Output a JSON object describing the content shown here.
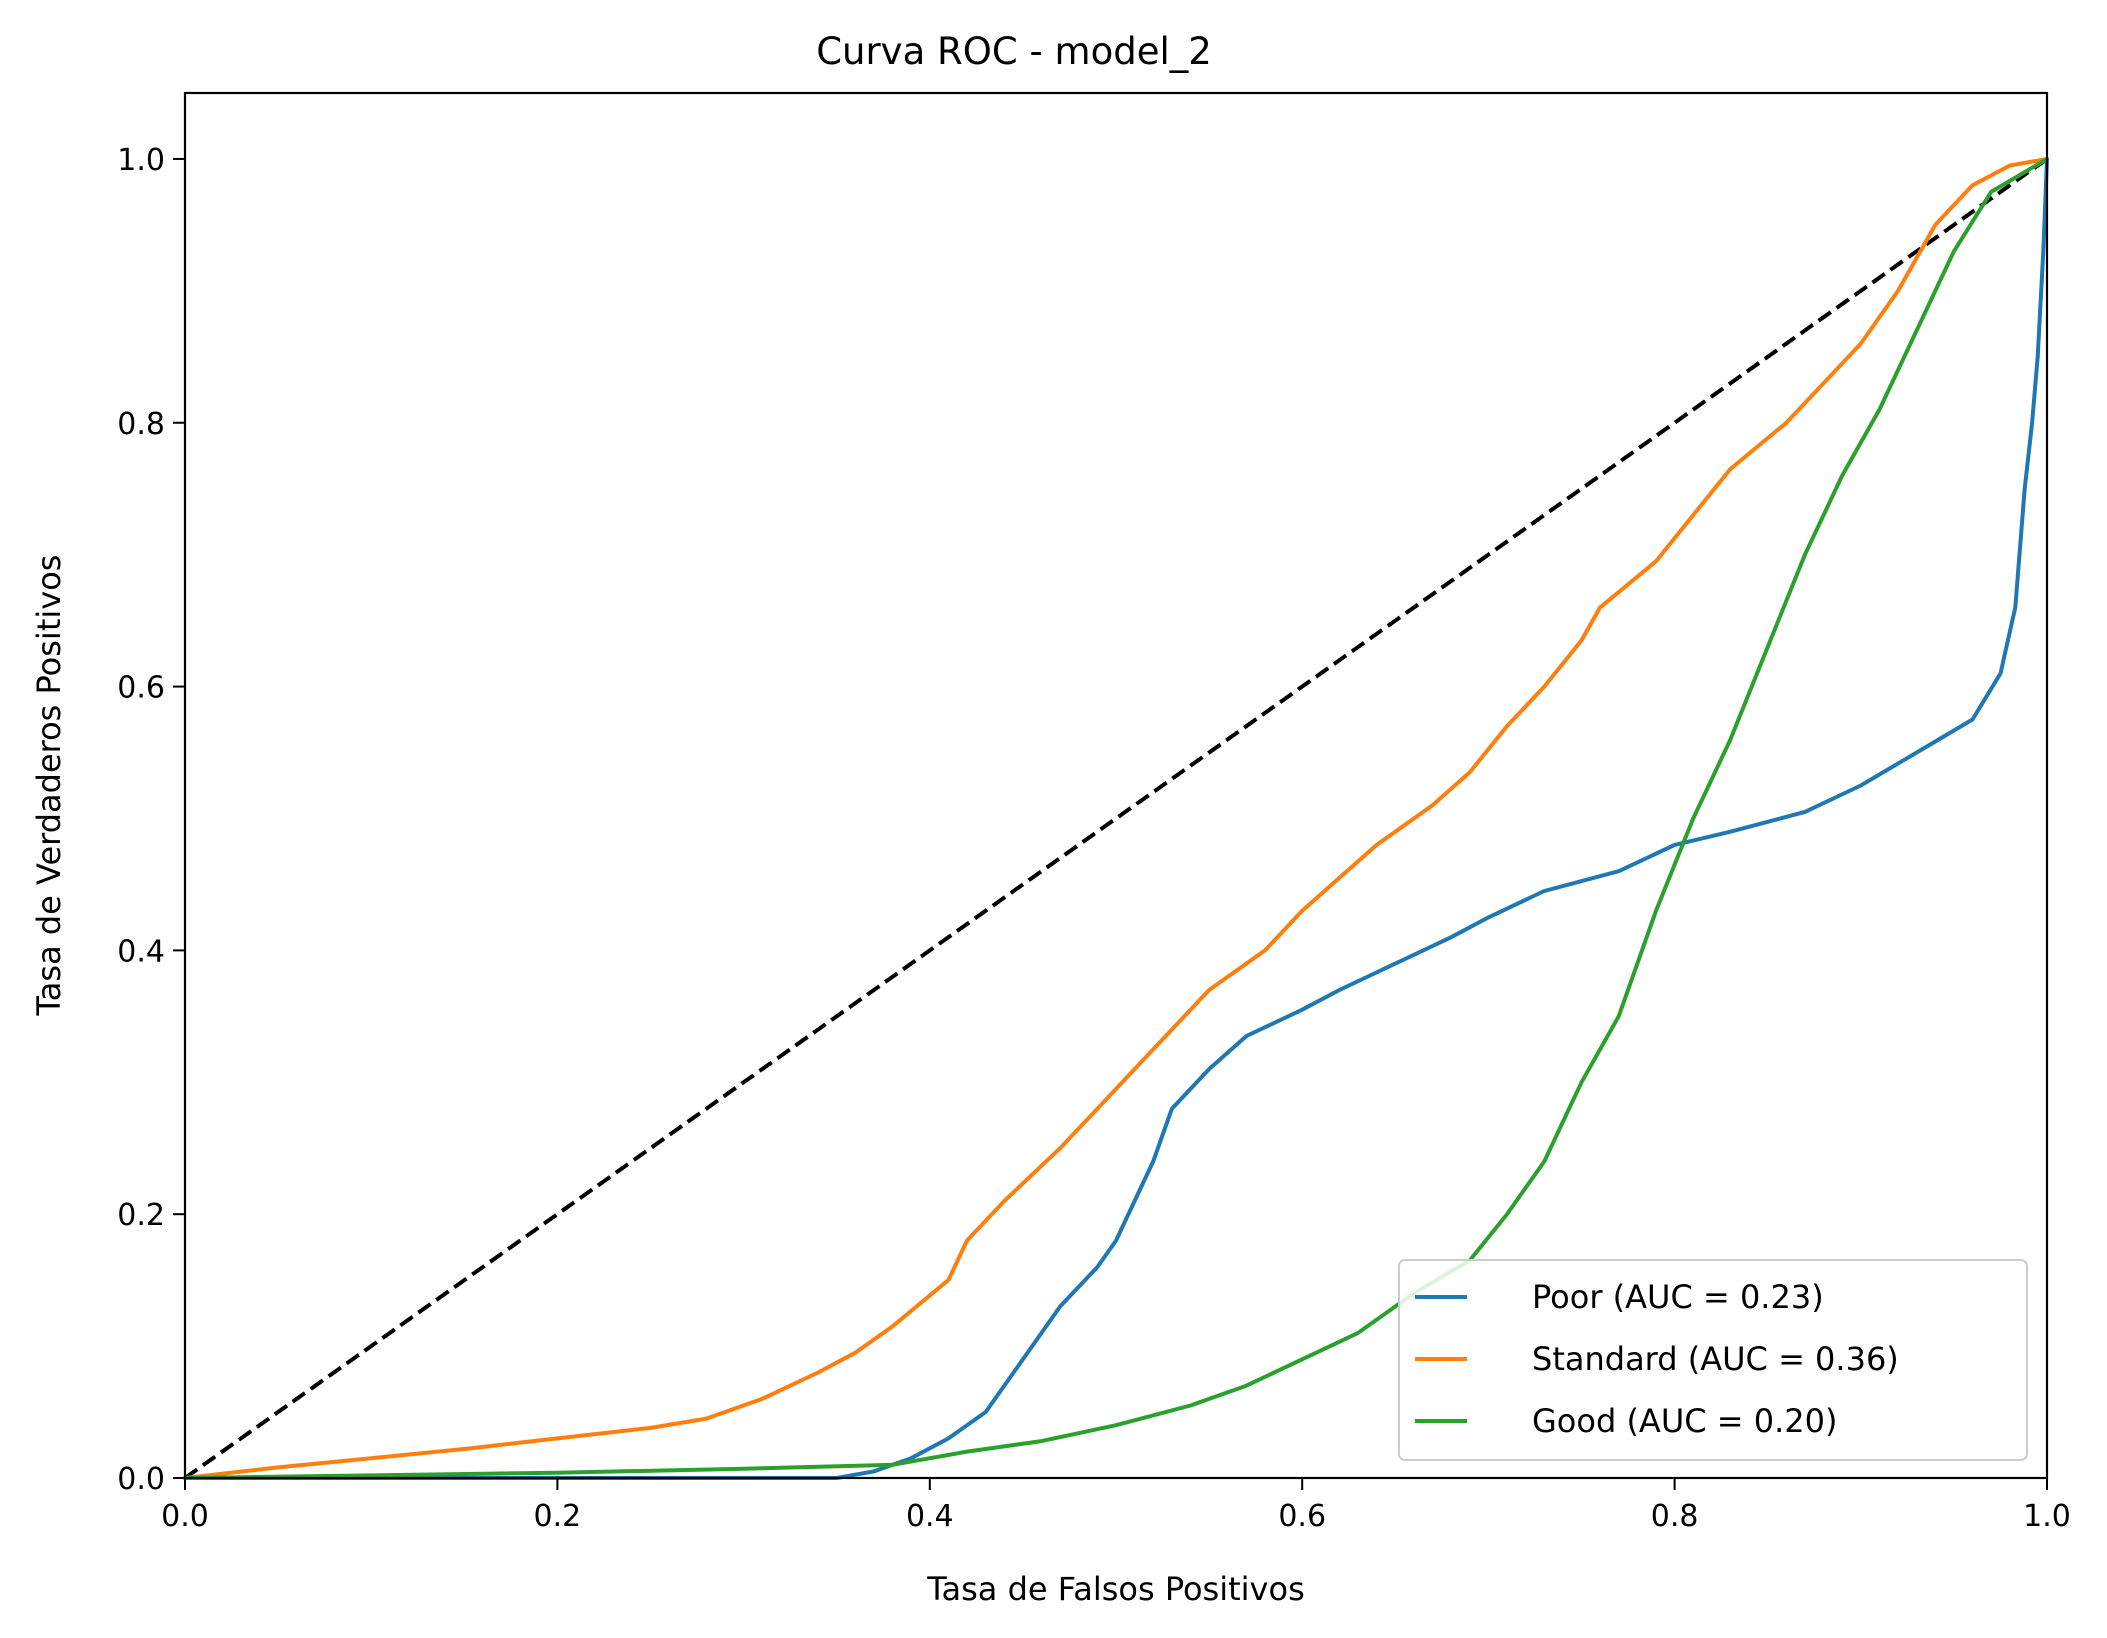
{
  "chart_data": {
    "type": "line",
    "title": "Curva ROC - model_2",
    "xlabel": "Tasa de Falsos Positivos",
    "ylabel": "Tasa de Verdaderos Positivos",
    "xlim": [
      0.0,
      1.0
    ],
    "ylim": [
      0.0,
      1.05
    ],
    "xticks": [
      "0.0",
      "0.2",
      "0.4",
      "0.6",
      "0.8",
      "1.0"
    ],
    "yticks": [
      "0.0",
      "0.2",
      "0.4",
      "0.6",
      "0.8",
      "1.0"
    ],
    "grid": false,
    "legend_position": "lower-right",
    "reference_line": {
      "x": [
        0,
        1
      ],
      "y": [
        0,
        1
      ],
      "color": "#000000",
      "style": "dashed"
    },
    "series": [
      {
        "name": "Poor (AUC = 0.23)",
        "color": "#1f77b4",
        "points": [
          [
            0,
            0
          ],
          [
            0.35,
            0
          ],
          [
            0.37,
            0.005
          ],
          [
            0.39,
            0.015
          ],
          [
            0.41,
            0.03
          ],
          [
            0.43,
            0.05
          ],
          [
            0.45,
            0.09
          ],
          [
            0.47,
            0.13
          ],
          [
            0.49,
            0.16
          ],
          [
            0.5,
            0.18
          ],
          [
            0.52,
            0.24
          ],
          [
            0.53,
            0.28
          ],
          [
            0.55,
            0.31
          ],
          [
            0.57,
            0.335
          ],
          [
            0.6,
            0.355
          ],
          [
            0.62,
            0.37
          ],
          [
            0.65,
            0.39
          ],
          [
            0.68,
            0.41
          ],
          [
            0.7,
            0.425
          ],
          [
            0.73,
            0.445
          ],
          [
            0.77,
            0.46
          ],
          [
            0.8,
            0.48
          ],
          [
            0.83,
            0.49
          ],
          [
            0.87,
            0.505
          ],
          [
            0.9,
            0.525
          ],
          [
            0.93,
            0.55
          ],
          [
            0.96,
            0.575
          ],
          [
            0.975,
            0.61
          ],
          [
            0.983,
            0.66
          ],
          [
            0.988,
            0.75
          ],
          [
            0.992,
            0.8
          ],
          [
            0.995,
            0.85
          ],
          [
            0.998,
            0.93
          ],
          [
            1.0,
            1.0
          ]
        ]
      },
      {
        "name": "Standard (AUC = 0.36)",
        "color": "#ff7f0e",
        "points": [
          [
            0,
            0
          ],
          [
            0.05,
            0.008
          ],
          [
            0.1,
            0.015
          ],
          [
            0.15,
            0.022
          ],
          [
            0.2,
            0.03
          ],
          [
            0.25,
            0.038
          ],
          [
            0.28,
            0.045
          ],
          [
            0.31,
            0.06
          ],
          [
            0.34,
            0.08
          ],
          [
            0.36,
            0.095
          ],
          [
            0.38,
            0.115
          ],
          [
            0.41,
            0.15
          ],
          [
            0.42,
            0.18
          ],
          [
            0.44,
            0.21
          ],
          [
            0.47,
            0.25
          ],
          [
            0.49,
            0.28
          ],
          [
            0.51,
            0.31
          ],
          [
            0.53,
            0.34
          ],
          [
            0.55,
            0.37
          ],
          [
            0.58,
            0.4
          ],
          [
            0.6,
            0.43
          ],
          [
            0.62,
            0.455
          ],
          [
            0.64,
            0.48
          ],
          [
            0.67,
            0.51
          ],
          [
            0.69,
            0.535
          ],
          [
            0.71,
            0.57
          ],
          [
            0.73,
            0.6
          ],
          [
            0.75,
            0.635
          ],
          [
            0.76,
            0.66
          ],
          [
            0.79,
            0.695
          ],
          [
            0.81,
            0.73
          ],
          [
            0.83,
            0.765
          ],
          [
            0.86,
            0.8
          ],
          [
            0.88,
            0.83
          ],
          [
            0.9,
            0.86
          ],
          [
            0.92,
            0.9
          ],
          [
            0.94,
            0.95
          ],
          [
            0.96,
            0.98
          ],
          [
            0.98,
            0.995
          ],
          [
            1.0,
            1.0
          ]
        ]
      },
      {
        "name": "Good (AUC = 0.20)",
        "color": "#2ca02c",
        "points": [
          [
            0,
            0
          ],
          [
            0.1,
            0.002
          ],
          [
            0.2,
            0.004
          ],
          [
            0.3,
            0.007
          ],
          [
            0.38,
            0.01
          ],
          [
            0.42,
            0.02
          ],
          [
            0.46,
            0.028
          ],
          [
            0.5,
            0.04
          ],
          [
            0.54,
            0.055
          ],
          [
            0.57,
            0.07
          ],
          [
            0.6,
            0.09
          ],
          [
            0.63,
            0.11
          ],
          [
            0.66,
            0.14
          ],
          [
            0.69,
            0.165
          ],
          [
            0.71,
            0.2
          ],
          [
            0.73,
            0.24
          ],
          [
            0.75,
            0.3
          ],
          [
            0.77,
            0.35
          ],
          [
            0.79,
            0.43
          ],
          [
            0.81,
            0.5
          ],
          [
            0.83,
            0.56
          ],
          [
            0.85,
            0.63
          ],
          [
            0.87,
            0.7
          ],
          [
            0.89,
            0.76
          ],
          [
            0.91,
            0.81
          ],
          [
            0.93,
            0.87
          ],
          [
            0.95,
            0.93
          ],
          [
            0.97,
            0.975
          ],
          [
            1.0,
            1.0
          ]
        ]
      }
    ]
  }
}
